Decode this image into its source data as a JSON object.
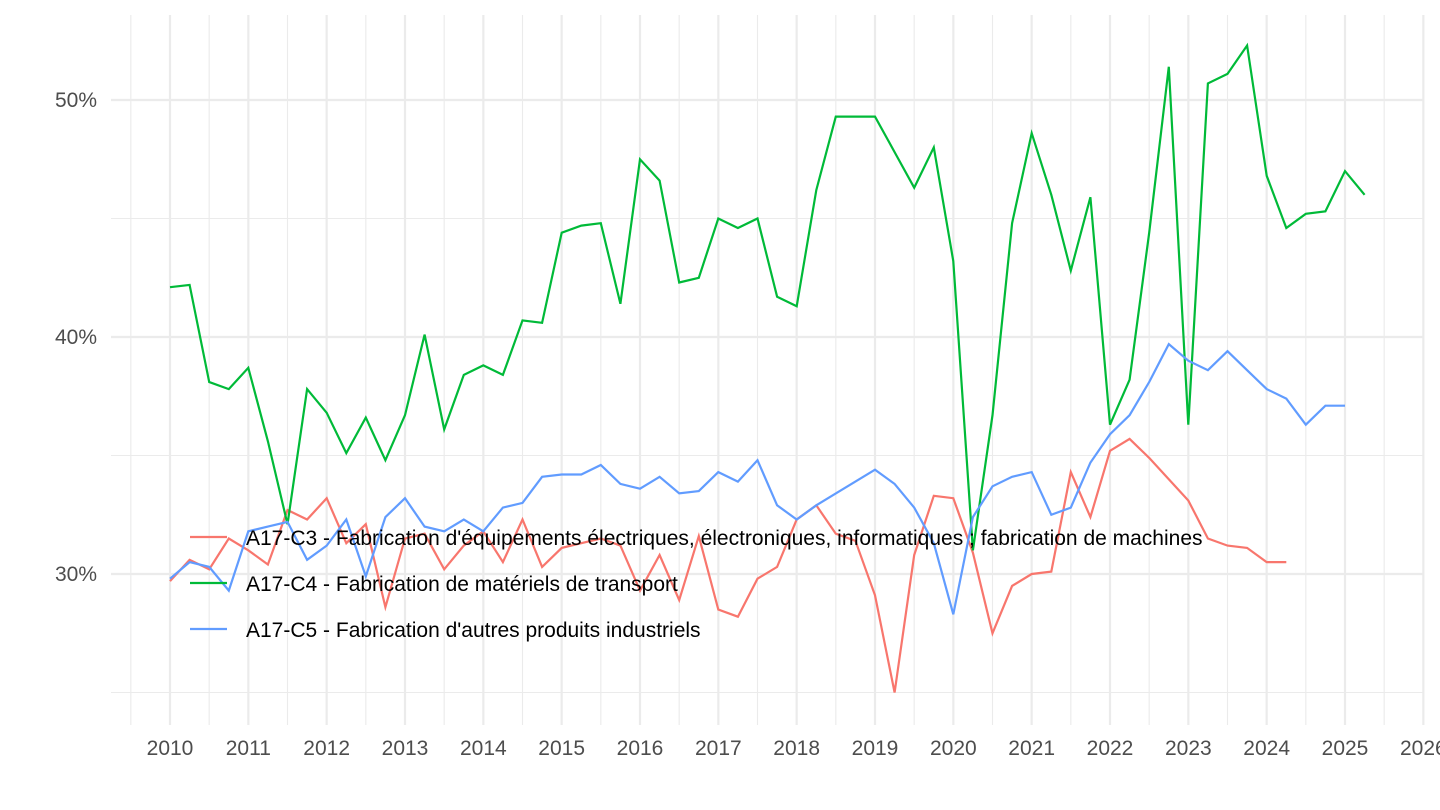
{
  "chart_data": {
    "type": "line",
    "title": "",
    "xlabel": "",
    "ylabel": "",
    "x_unit": "quarter",
    "x_start": 2010.0,
    "x_step": 0.25,
    "xlim": [
      2009.5,
      2026.0
    ],
    "ylim": [
      24.0,
      53.5
    ],
    "x_ticks": [
      2010,
      2011,
      2012,
      2013,
      2014,
      2015,
      2016,
      2017,
      2018,
      2019,
      2020,
      2021,
      2022,
      2023,
      2024,
      2025,
      2026
    ],
    "x_tick_labels": [
      "2010",
      "2011",
      "2012",
      "2013",
      "2014",
      "2015",
      "2016",
      "2017",
      "2018",
      "2019",
      "2020",
      "2021",
      "2022",
      "2023",
      "2024",
      "2025",
      "2026"
    ],
    "y_ticks": [
      30,
      40,
      50
    ],
    "y_tick_labels": [
      "30%",
      "40%",
      "50%"
    ],
    "y_minor_ticks": [
      25,
      35,
      45
    ],
    "grid": true,
    "legend_position": "inside-bottom-left",
    "series": [
      {
        "name": "A17-C3 - Fabrication d'équipements électriques, électroniques, informatiques ; fabrication de machines",
        "color": "#F8766D",
        "values": [
          29.7,
          30.6,
          30.2,
          31.5,
          31.0,
          30.4,
          32.7,
          32.3,
          33.2,
          31.3,
          32.1,
          28.6,
          31.5,
          31.7,
          30.2,
          31.2,
          31.8,
          30.5,
          32.3,
          30.3,
          31.1,
          31.3,
          31.5,
          31.2,
          29.3,
          30.8,
          28.9,
          31.6,
          28.5,
          28.2,
          29.8,
          30.3,
          32.3,
          32.9,
          31.7,
          31.4,
          29.1,
          25.0,
          30.8,
          33.3,
          33.2,
          30.9,
          27.5,
          29.5,
          30.0,
          30.1,
          34.3,
          32.4,
          35.2,
          35.7,
          34.9,
          34.0,
          33.1,
          31.5,
          31.2,
          31.1,
          30.5,
          30.5
        ]
      },
      {
        "name": "A17-C4 - Fabrication de matériels de transport",
        "color": "#00BA38",
        "values": [
          42.1,
          42.2,
          38.1,
          37.8,
          38.7,
          35.6,
          32.1,
          37.8,
          36.8,
          35.1,
          36.6,
          34.8,
          36.7,
          40.1,
          36.1,
          38.4,
          38.8,
          38.4,
          40.7,
          40.6,
          44.4,
          44.7,
          44.8,
          41.4,
          47.5,
          46.6,
          42.3,
          42.5,
          45.0,
          44.6,
          45.0,
          41.7,
          41.3,
          46.2,
          49.3,
          49.3,
          49.3,
          47.8,
          46.3,
          48.0,
          43.2,
          31.0,
          36.7,
          44.8,
          48.6,
          46.0,
          42.8,
          45.9,
          36.3,
          38.2,
          44.4,
          51.4,
          36.3,
          50.7,
          51.1,
          52.3,
          46.8,
          44.6,
          45.2,
          45.3,
          47.0,
          46.0
        ]
      },
      {
        "name": "A17-C5 - Fabrication d'autres produits industriels",
        "color": "#619CFF",
        "values": [
          29.8,
          30.5,
          30.3,
          29.3,
          31.8,
          32.0,
          32.2,
          30.6,
          31.2,
          32.3,
          29.9,
          32.4,
          33.2,
          32.0,
          31.8,
          32.3,
          31.8,
          32.8,
          33.0,
          34.1,
          34.2,
          34.2,
          34.6,
          33.8,
          33.6,
          34.1,
          33.4,
          33.5,
          34.3,
          33.9,
          34.8,
          32.9,
          32.3,
          32.9,
          33.4,
          33.9,
          34.4,
          33.8,
          32.8,
          31.3,
          28.3,
          32.4,
          33.7,
          34.1,
          34.3,
          32.5,
          32.8,
          34.7,
          35.9,
          36.7,
          38.1,
          39.7,
          39.0,
          38.6,
          39.4,
          38.6,
          37.8,
          37.4,
          36.3,
          37.1,
          37.1
        ]
      }
    ]
  }
}
